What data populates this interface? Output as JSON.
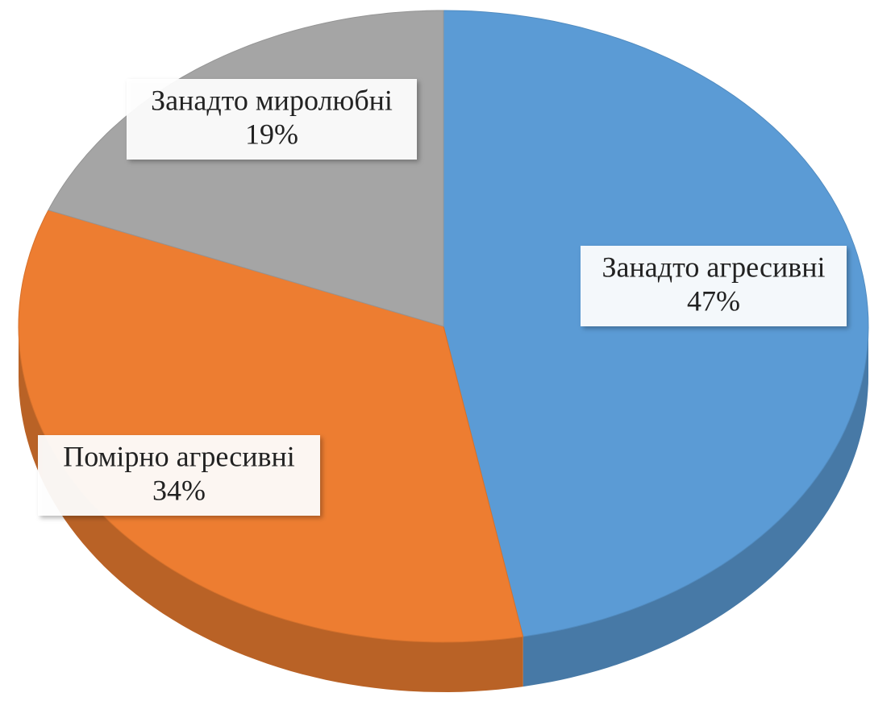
{
  "chart_data": {
    "type": "pie",
    "categories": [
      "Занадто агресивні",
      "Помірно агресивні",
      "Занадто миролюбні"
    ],
    "values": [
      47,
      34,
      19
    ],
    "value_labels": [
      "47%",
      "34%",
      "19%"
    ],
    "colors": [
      "#5b9bd5",
      "#ed7d31",
      "#a5a5a5"
    ]
  }
}
